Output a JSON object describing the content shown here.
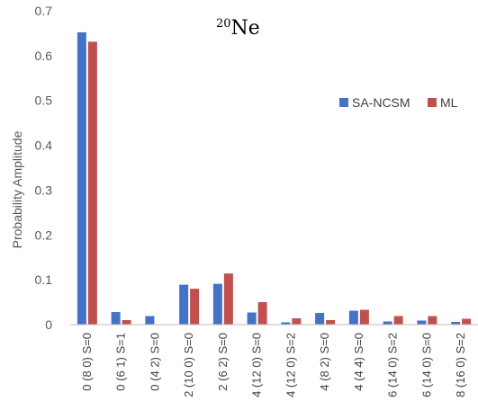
{
  "chart_data": {
    "type": "bar",
    "title_sup": "20",
    "title_main": "Ne",
    "ylabel": "Probability Amplitude",
    "xlabel": "",
    "ylim": [
      0,
      0.7
    ],
    "yticks": [
      "0",
      "0.1",
      "0.2",
      "0.3",
      "0.4",
      "0.5",
      "0.6",
      "0.7"
    ],
    "ytick_values": [
      0,
      0.1,
      0.2,
      0.3,
      0.4,
      0.5,
      0.6,
      0.7
    ],
    "grid": false,
    "legend_position": "right",
    "categories": [
      "0 (8 0) S=0",
      "0 (6 1) S=1",
      "0 (4 2) S=0",
      "2 (10 0) S=0",
      "2 (6 2) S=0",
      "4 (12 0) S=0",
      "4 (12 0) S=2",
      "4 (8 2) S=0",
      "4 (4 4) S=0",
      "6 (14 0) S=2",
      "6 (14 0) S=0",
      "8 (16 0) S=2"
    ],
    "series": [
      {
        "name": "SA-NCSM",
        "color": "#4472C4",
        "values": [
          0.652,
          0.028,
          0.019,
          0.089,
          0.091,
          0.027,
          0.005,
          0.026,
          0.031,
          0.007,
          0.009,
          0.006
        ]
      },
      {
        "name": "ML",
        "color": "#C0504D",
        "values": [
          0.631,
          0.01,
          0.0,
          0.08,
          0.114,
          0.05,
          0.014,
          0.01,
          0.033,
          0.019,
          0.019,
          0.013
        ]
      }
    ]
  }
}
